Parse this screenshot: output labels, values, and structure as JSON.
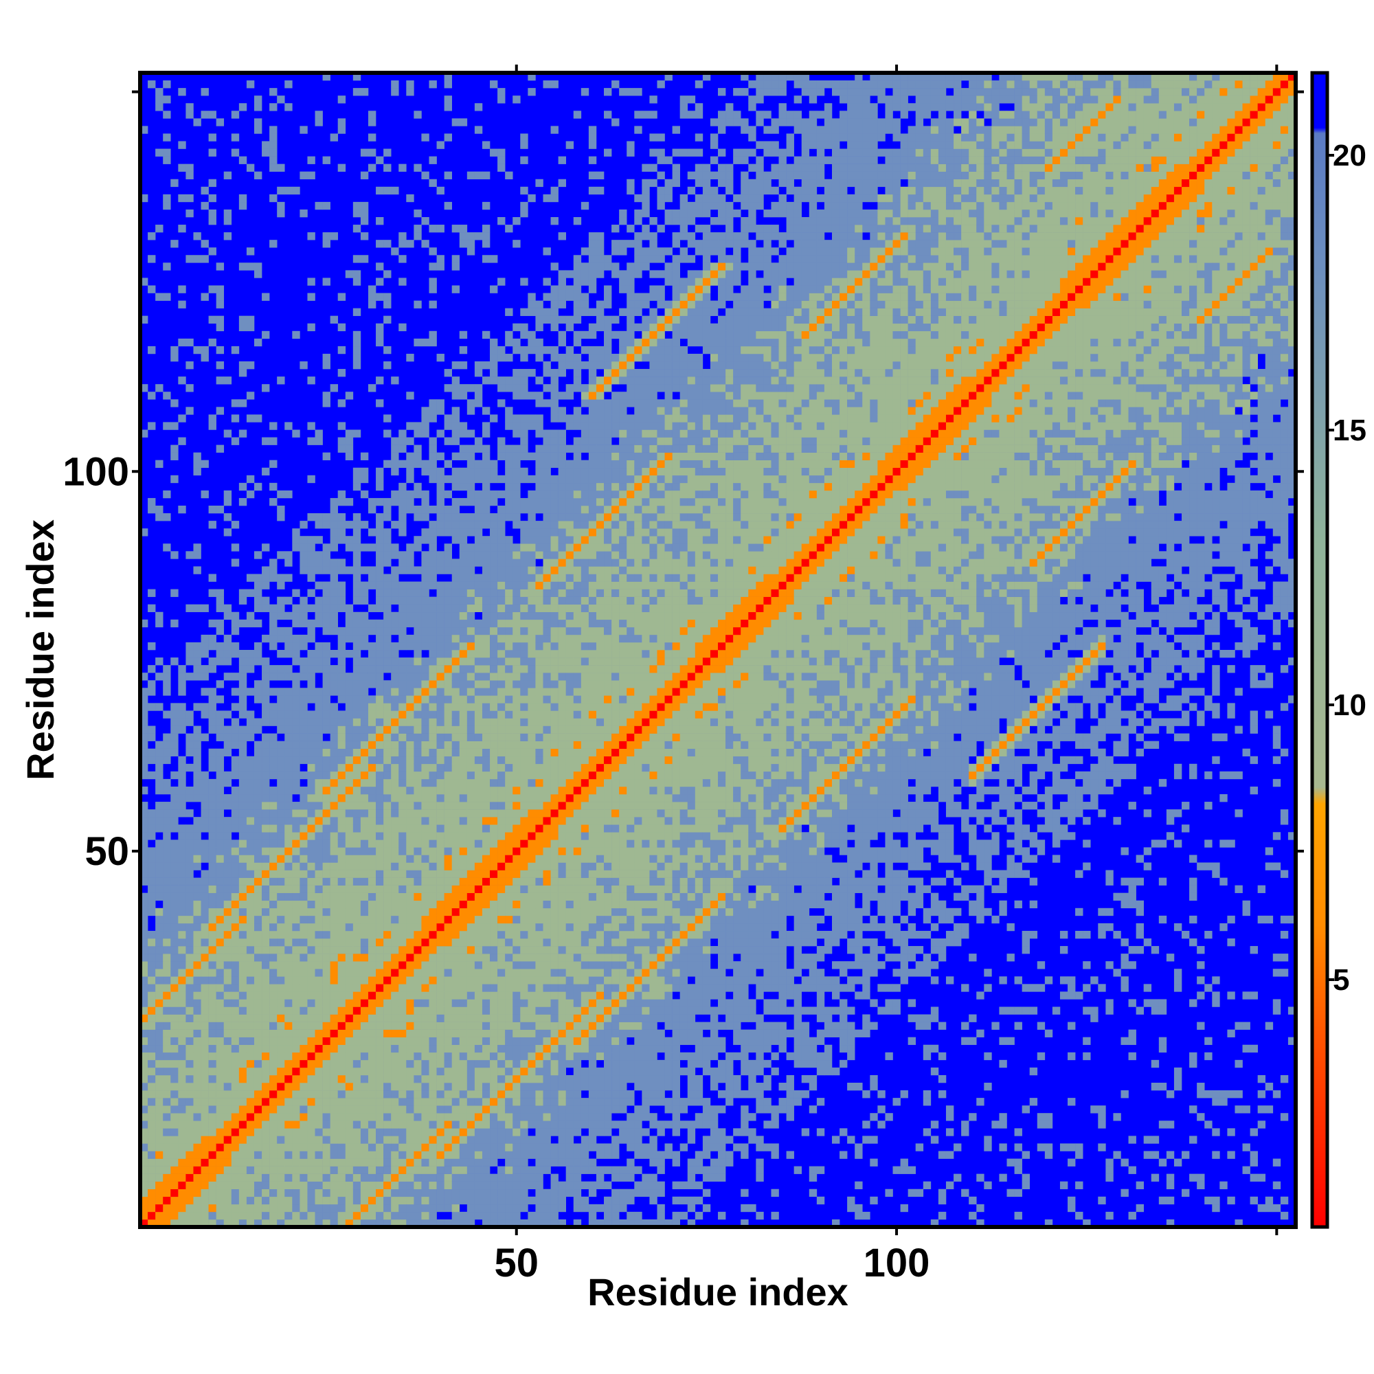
{
  "chart_data": {
    "type": "heatmap",
    "title": "",
    "xlabel": "Residue index",
    "ylabel": "Residue index",
    "n_residues": 152,
    "xlim": [
      0.5,
      152.5
    ],
    "ylim": [
      0.5,
      152.5
    ],
    "x_ticks": [
      50,
      100
    ],
    "y_ticks": [
      50,
      100
    ],
    "x_tick_marks": [
      50,
      100,
      150
    ],
    "y_tick_marks": [
      50,
      100,
      150
    ],
    "colorbar": {
      "ticks": [
        5,
        10,
        15,
        20
      ],
      "range": [
        0.5,
        21.5
      ],
      "stops": [
        {
          "value": 0.5,
          "color": "#ff0000"
        },
        {
          "value": 4.0,
          "color": "#ff5500"
        },
        {
          "value": 6.0,
          "color": "#ff8c00"
        },
        {
          "value": 8.2,
          "color": "#ffa500"
        },
        {
          "value": 8.5,
          "color": "#a8b890"
        },
        {
          "value": 13.0,
          "color": "#8fb39a"
        },
        {
          "value": 18.0,
          "color": "#6c8ebf"
        },
        {
          "value": 20.4,
          "color": "#5b7bc4"
        },
        {
          "value": 20.5,
          "color": "#0000ff"
        },
        {
          "value": 21.5,
          "color": "#0000ff"
        }
      ]
    },
    "colors": {
      "near": "#ff0000",
      "contact": "#ff8c00",
      "medium": "#9fb892",
      "far": "#6f8fc0",
      "background": "#0000ff",
      "frame": "#000000"
    },
    "matrix_description": {
      "symmetric": true,
      "diagonal_distance": 1.0,
      "helical_regions": [
        [
          1,
          12
        ],
        [
          38,
          55
        ],
        [
          74,
          86
        ],
        [
          98,
          112
        ],
        [
          122,
          140
        ]
      ],
      "off_diagonal_bands": [
        {
          "offset_start": [
            1,
            28
          ],
          "length": 14,
          "distance": 6
        },
        {
          "offset_start": [
            10,
            40
          ],
          "length": 22,
          "distance": 6
        },
        {
          "offset_start": [
            25,
            58
          ],
          "length": 20,
          "distance": 6
        },
        {
          "offset_start": [
            53,
            85
          ],
          "length": 18,
          "distance": 6
        },
        {
          "offset_start": [
            60,
            110
          ],
          "length": 18,
          "distance": 6
        },
        {
          "offset_start": [
            88,
            118
          ],
          "length": 14,
          "distance": 6
        },
        {
          "offset_start": [
            120,
            140
          ],
          "length": 10,
          "distance": 6
        },
        {
          "offset_start": [
            30,
            48
          ],
          "length": 10,
          "distance": 10
        }
      ]
    }
  }
}
